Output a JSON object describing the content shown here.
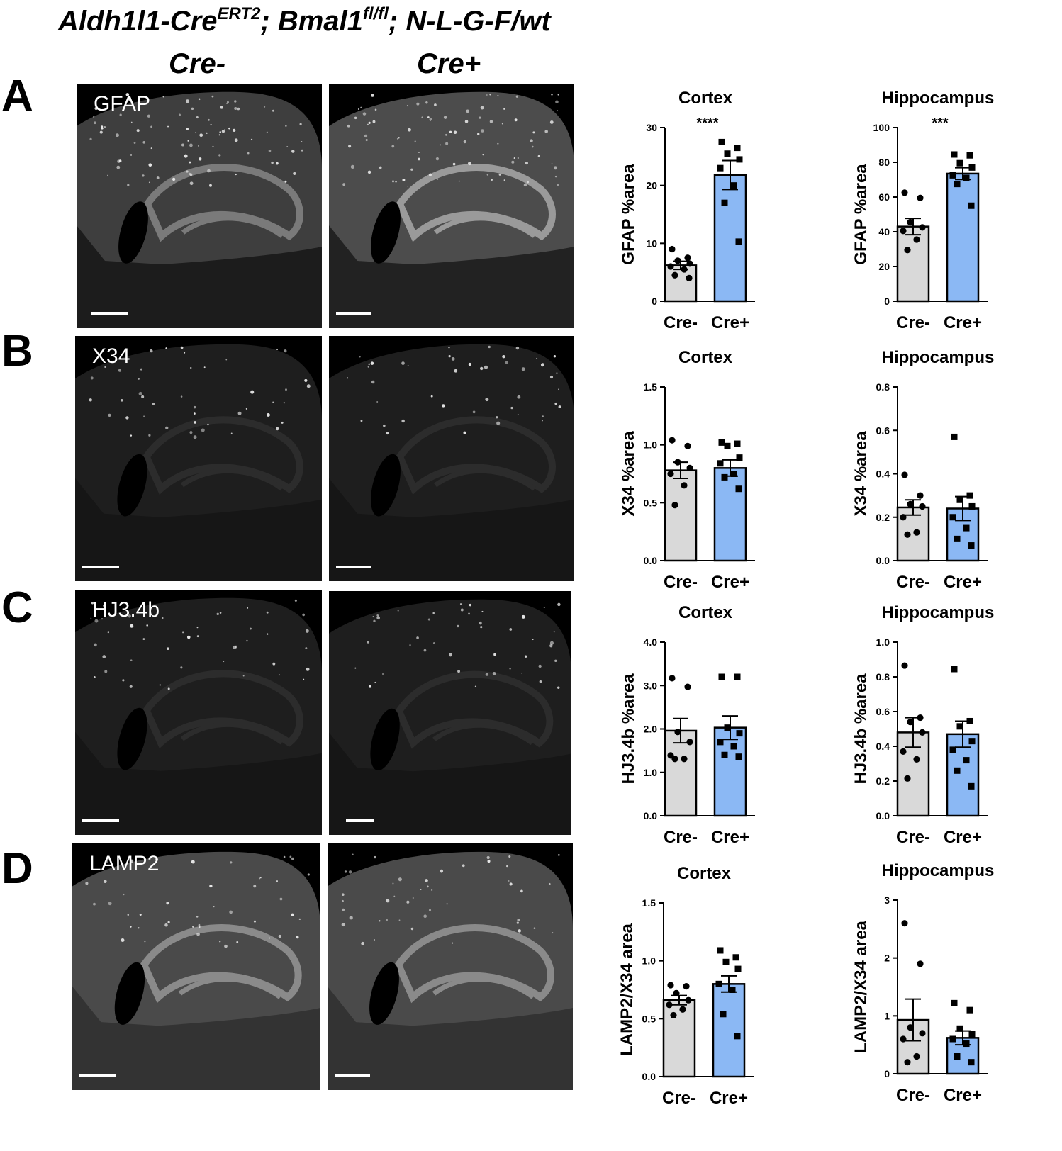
{
  "figure": {
    "title_parts": {
      "p1": "Aldh1l1-Cre",
      "sup1": "ERT2",
      "p2": "; Bmal1",
      "sup2": "fl/fl",
      "p3": "; N-L-G-F/wt"
    },
    "col_headers": [
      "Cre-",
      "Cre+"
    ]
  },
  "panels": [
    {
      "letter": "A",
      "stain": "GFAP"
    },
    {
      "letter": "B",
      "stain": "X34"
    },
    {
      "letter": "C",
      "stain": "HJ3.4b"
    },
    {
      "letter": "D",
      "stain": "LAMP2"
    }
  ],
  "colors": {
    "cre_minus": "#d9d9d9",
    "cre_plus": "#8bb8f4",
    "image_bg": "#000000"
  },
  "chart_data": [
    {
      "type": "bar",
      "title": "Cortex",
      "ylabel": "GFAP %area",
      "categories": [
        "Cre-",
        "Cre+"
      ],
      "ylim": [
        0,
        30
      ],
      "yticks": [
        "0",
        "10",
        "20",
        "30"
      ],
      "yticks_values": [
        0,
        10,
        20,
        30
      ],
      "values": [
        6.2,
        21.8
      ],
      "sem": [
        0.7,
        2.5
      ],
      "significance": "****",
      "points": [
        [
          9.0,
          7.5,
          7.0,
          6.5,
          6.0,
          5.5,
          4.5,
          4.0
        ],
        [
          27.5,
          26.5,
          25.5,
          24.5,
          23.0,
          20.0,
          17.0,
          10.3
        ]
      ]
    },
    {
      "type": "bar",
      "title": "Hippocampus",
      "ylabel": "GFAP %area",
      "categories": [
        "Cre-",
        "Cre+"
      ],
      "ylim": [
        0,
        100
      ],
      "yticks": [
        "0",
        "20",
        "40",
        "60",
        "80",
        "100"
      ],
      "yticks_values": [
        0,
        20,
        40,
        60,
        80,
        100
      ],
      "values": [
        43,
        73.5
      ],
      "sem": [
        4.7,
        3.4
      ],
      "significance": "***",
      "points": [
        [
          62.5,
          59.5,
          45.5,
          42.5,
          40.5,
          35.5,
          29.5
        ],
        [
          84.5,
          84.0,
          79.5,
          77.0,
          72.5,
          71.0,
          67.5,
          55.0
        ]
      ]
    },
    {
      "type": "bar",
      "title": "Cortex",
      "ylabel": "X34 %area",
      "categories": [
        "Cre-",
        "Cre+"
      ],
      "ylim": [
        0,
        1.5
      ],
      "yticks": [
        "0.0",
        "0.5",
        "1.0",
        "1.5"
      ],
      "yticks_values": [
        0,
        0.5,
        1.0,
        1.5
      ],
      "values": [
        0.78,
        0.8
      ],
      "sem": [
        0.07,
        0.07
      ],
      "points": [
        [
          1.04,
          0.99,
          0.85,
          0.8,
          0.75,
          0.65,
          0.48
        ],
        [
          1.02,
          1.01,
          0.99,
          0.89,
          0.84,
          0.75,
          0.72,
          0.62
        ]
      ]
    },
    {
      "type": "bar",
      "title": "Hippocampus",
      "ylabel": "X34 %area",
      "categories": [
        "Cre-",
        "Cre+"
      ],
      "ylim": [
        0,
        0.8
      ],
      "yticks": [
        "0.0",
        "0.2",
        "0.4",
        "0.6",
        "0.8"
      ],
      "yticks_values": [
        0,
        0.2,
        0.4,
        0.6,
        0.8
      ],
      "values": [
        0.245,
        0.24
      ],
      "sem": [
        0.035,
        0.055
      ],
      "points": [
        [
          0.395,
          0.3,
          0.26,
          0.25,
          0.2,
          0.13,
          0.12
        ],
        [
          0.57,
          0.3,
          0.28,
          0.25,
          0.2,
          0.15,
          0.1,
          0.07
        ]
      ]
    },
    {
      "type": "bar",
      "title": "Cortex",
      "ylabel": "HJ3.4b %area",
      "categories": [
        "Cre-",
        "Cre+"
      ],
      "ylim": [
        0,
        4.0
      ],
      "yticks": [
        "0.0",
        "1.0",
        "2.0",
        "3.0",
        "4.0"
      ],
      "yticks_values": [
        0,
        1,
        2,
        3,
        4
      ],
      "values": [
        1.96,
        2.03
      ],
      "sem": [
        0.28,
        0.27
      ],
      "points": [
        [
          3.17,
          2.97,
          1.93,
          1.7,
          1.39,
          1.31,
          1.31
        ],
        [
          3.2,
          3.2,
          2.03,
          1.9,
          1.7,
          1.6,
          1.4,
          1.36
        ]
      ]
    },
    {
      "type": "bar",
      "title": "Hippocampus",
      "ylabel": "HJ3.4b %area",
      "categories": [
        "Cre-",
        "Cre+"
      ],
      "ylim": [
        0,
        1.0
      ],
      "yticks": [
        "0.0",
        "0.2",
        "0.4",
        "0.6",
        "0.8",
        "1.0"
      ],
      "yticks_values": [
        0,
        0.2,
        0.4,
        0.6,
        0.8,
        1.0
      ],
      "values": [
        0.48,
        0.47
      ],
      "sem": [
        0.085,
        0.075
      ],
      "points": [
        [
          0.865,
          0.565,
          0.54,
          0.48,
          0.37,
          0.325,
          0.215
        ],
        [
          0.845,
          0.545,
          0.515,
          0.43,
          0.38,
          0.32,
          0.26,
          0.17
        ]
      ]
    },
    {
      "type": "bar",
      "title": "Cortex",
      "ylabel": "LAMP2/X34 area",
      "categories": [
        "Cre-",
        "Cre+"
      ],
      "ylim": [
        0,
        1.5
      ],
      "yticks": [
        "0.0",
        "0.5",
        "1.0",
        "1.5"
      ],
      "yticks_values": [
        0,
        0.5,
        1.0,
        1.5
      ],
      "values": [
        0.66,
        0.8
      ],
      "sem": [
        0.04,
        0.07
      ],
      "points": [
        [
          0.79,
          0.78,
          0.72,
          0.66,
          0.62,
          0.58,
          0.53
        ],
        [
          1.09,
          1.03,
          0.99,
          0.93,
          0.8,
          0.75,
          0.54,
          0.35
        ]
      ]
    },
    {
      "type": "bar",
      "title": "Hippocampus",
      "ylabel": "LAMP2/X34 area",
      "categories": [
        "Cre-",
        "Cre+"
      ],
      "ylim": [
        0,
        3
      ],
      "yticks": [
        "0",
        "1",
        "2",
        "3"
      ],
      "yticks_values": [
        0,
        1,
        2,
        3
      ],
      "values": [
        0.93,
        0.62
      ],
      "sem": [
        0.36,
        0.12
      ],
      "points": [
        [
          2.6,
          1.9,
          0.8,
          0.7,
          0.6,
          0.3,
          0.2
        ],
        [
          1.22,
          1.1,
          0.78,
          0.68,
          0.6,
          0.52,
          0.3,
          0.2
        ]
      ]
    }
  ]
}
